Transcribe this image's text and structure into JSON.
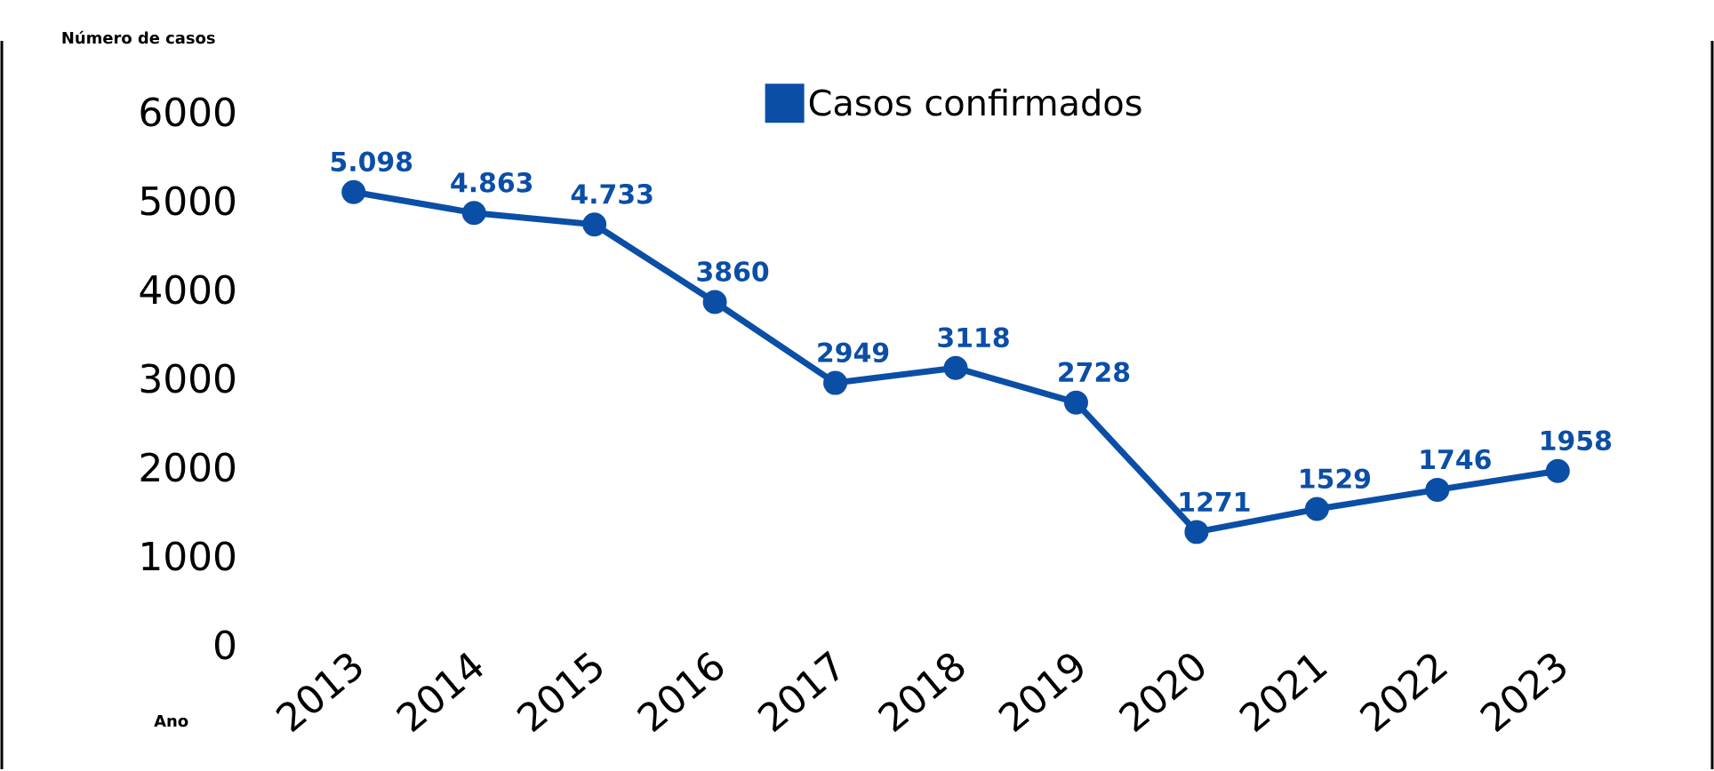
{
  "chart_data": {
    "type": "line",
    "xlabel": "Ano",
    "ylabel": "Número de casos",
    "categories": [
      "2013",
      "2014",
      "2015",
      "2016",
      "2017",
      "2018",
      "2019",
      "2020",
      "2021",
      "2022",
      "2023"
    ],
    "series": [
      {
        "name": "Casos confirmados",
        "color": "#0b4ea6",
        "values": [
          5098,
          4863,
          4733,
          3860,
          2949,
          3118,
          2728,
          1271,
          1529,
          1746,
          1958
        ],
        "value_labels": [
          "5.098",
          "4.863",
          "4.733",
          "3860",
          "2949",
          "3118",
          "2728",
          "1271",
          "1529",
          "1746",
          "1958"
        ]
      }
    ],
    "ylim": [
      0,
      6000
    ],
    "yticks": [
      0,
      1000,
      2000,
      3000,
      4000,
      5000,
      6000
    ],
    "legend": "top",
    "marker": "circle",
    "line_style": "solid"
  }
}
